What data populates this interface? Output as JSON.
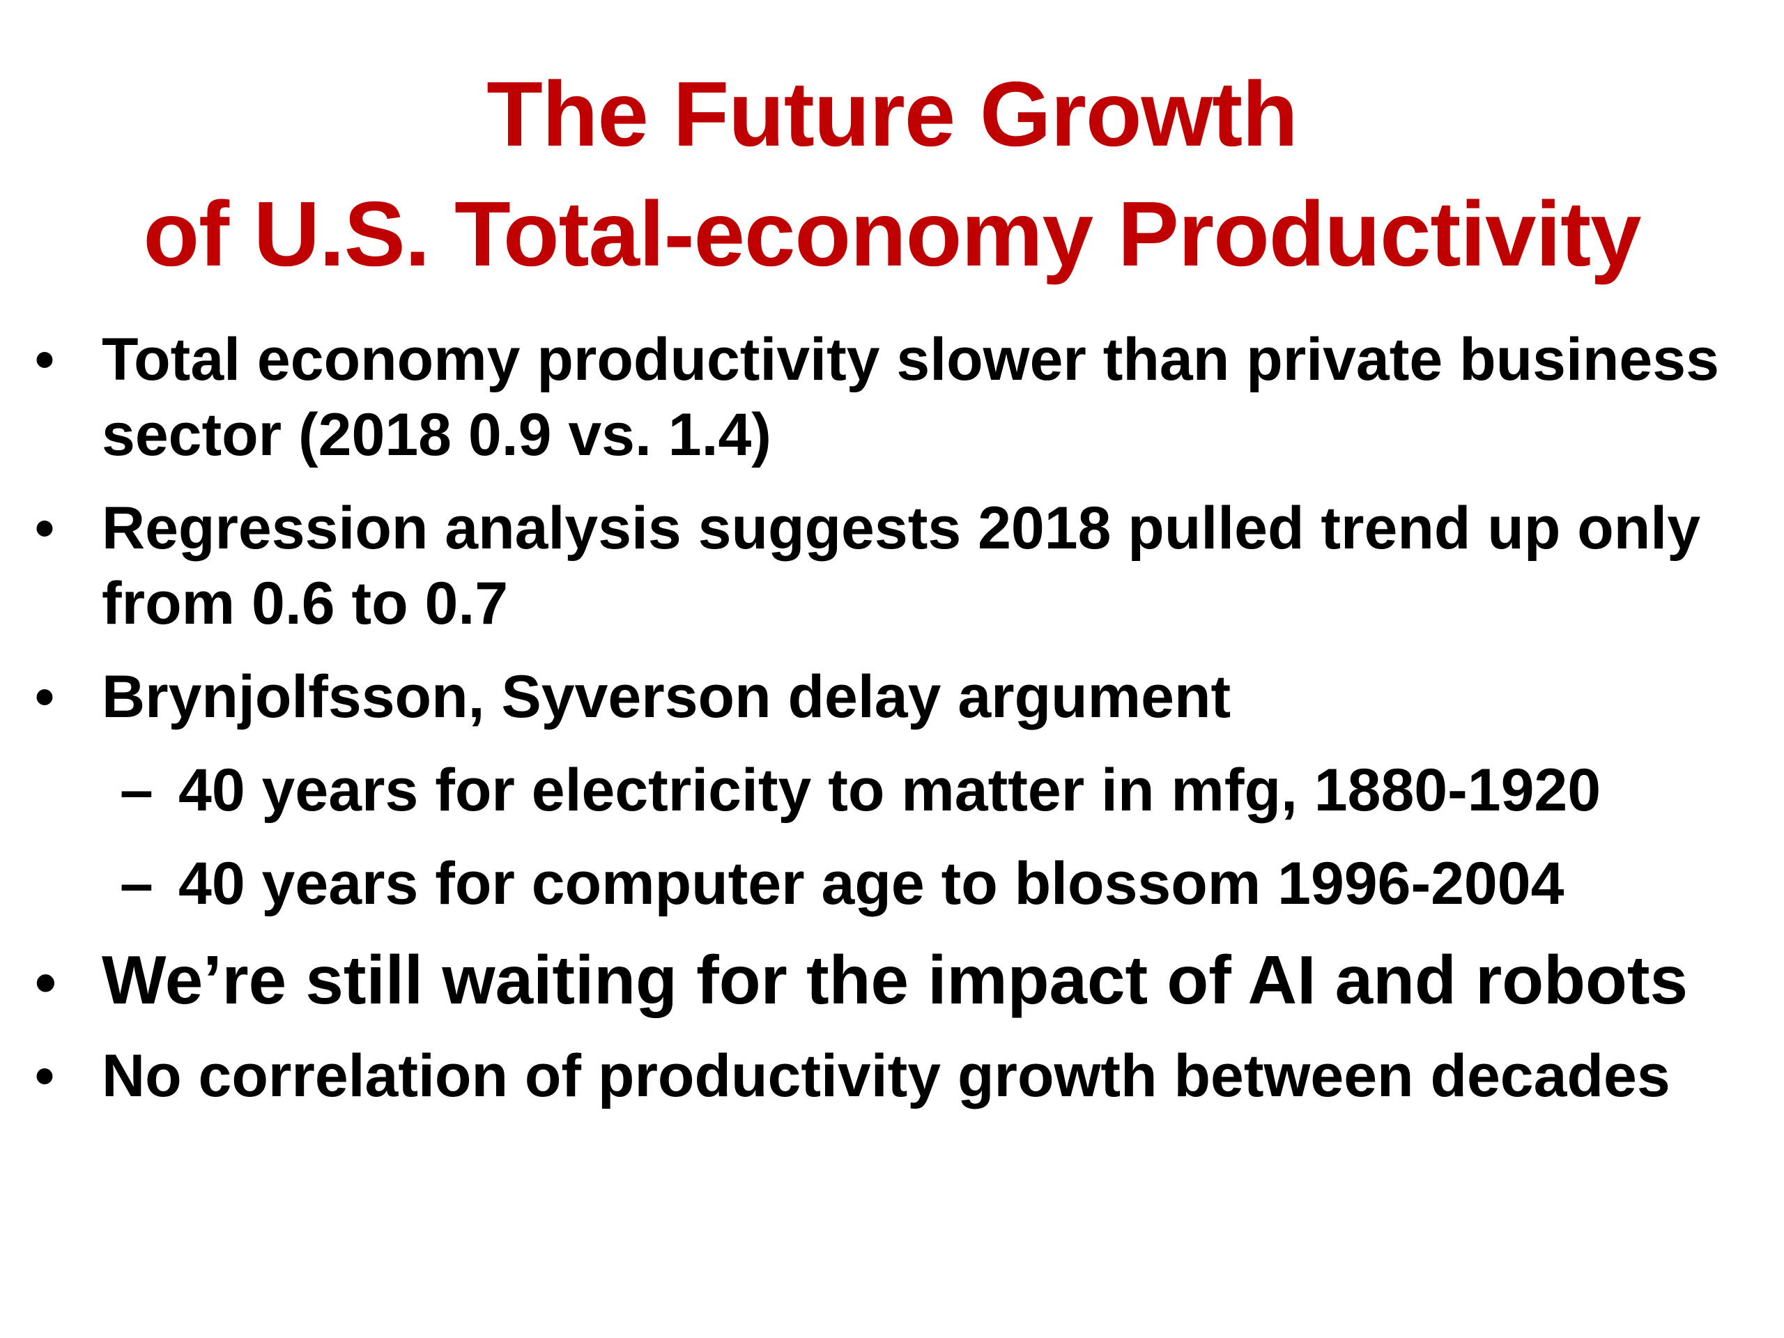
{
  "slide": {
    "title_line1": "The Future Growth",
    "title_line2": "of U.S. Total-economy Productivity",
    "bullet_glyph": "•",
    "dash_glyph": "–",
    "bullets": [
      {
        "line1": "Total economy productivity slower than private business",
        "line2": "sector (2018 0.9 vs. 1.4)"
      },
      {
        "line1": "Regression analysis suggests 2018 pulled trend up only",
        "line2": "from 0.6 to 0.7"
      },
      {
        "line1": "Brynjolfsson, Syverson delay argument",
        "subitems": [
          "40 years for electricity to matter in mfg, 1880-1920",
          "40 years for computer age to blossom 1996-2004"
        ]
      },
      {
        "line1": "We’re still waiting for the impact of AI and robots"
      },
      {
        "line1": "No correlation of productivity growth between decades"
      }
    ],
    "colors": {
      "title": "#c00000",
      "body": "#000000",
      "background": "#ffffff"
    }
  }
}
